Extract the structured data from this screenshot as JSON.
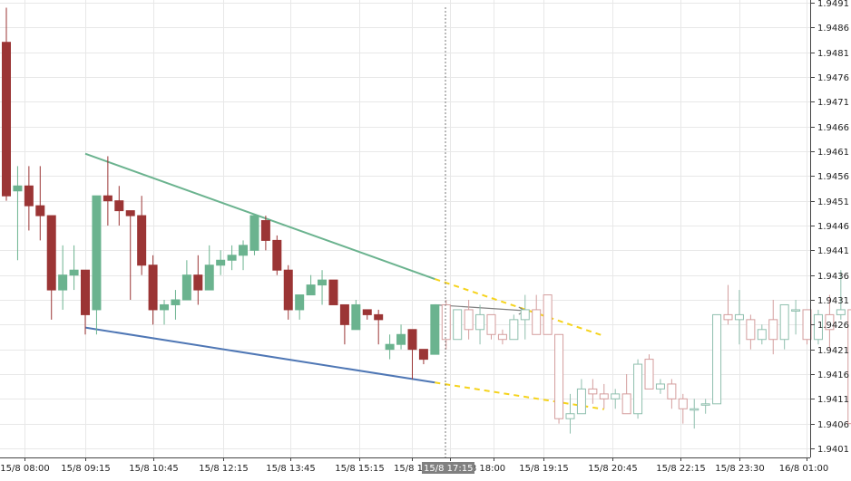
{
  "chart_data": {
    "type": "candlestick",
    "title": "",
    "xlabel": "",
    "ylabel": "",
    "ylim": [
      1.9399,
      1.9492
    ],
    "y_ticks": [
      "1.9401",
      "1.9406",
      "1.9411",
      "1.9416",
      "1.9421",
      "1.9426",
      "1.9431",
      "1.9436",
      "1.9441",
      "1.9446",
      "1.9451",
      "1.9456",
      "1.9461",
      "1.9466",
      "1.9471",
      "1.9476",
      "1.9481",
      "1.9486",
      "1.9491"
    ],
    "x_ticks": [
      "15/8 08:00",
      "15/8 09:15",
      "15/8 10:45",
      "15/8 12:15",
      "15/8 13:45",
      "15/8 15:15",
      "15/8 1",
      "15/8 17:15",
      "8 18:00",
      "15/8 19:15",
      "15/8 20:45",
      "15/8 22:15",
      "15/8 23:30",
      "16/8 01:00"
    ],
    "cursor_label": "15/8 17:15",
    "grid": true,
    "colors": {
      "bull": "#6bb38f",
      "bear": "#9b3535",
      "bull_projected": "#8fbfae",
      "bear_projected": "#d49d9d",
      "upper_trendline": "#6bb38f",
      "lower_trendline": "#4f77b5",
      "projection": "#f5d31c",
      "arrow": "#7f7f7f",
      "grid": "#e8e8e8"
    },
    "candles": [
      {
        "o": 1.9483,
        "h": 1.949,
        "l": 1.9451,
        "c": 1.9452
      },
      {
        "o": 1.9453,
        "h": 1.9458,
        "l": 1.9439,
        "c": 1.9454
      },
      {
        "o": 1.9454,
        "h": 1.9458,
        "l": 1.9445,
        "c": 1.945
      },
      {
        "o": 1.945,
        "h": 1.9458,
        "l": 1.9443,
        "c": 1.9448
      },
      {
        "o": 1.9448,
        "h": 1.9448,
        "l": 1.9427,
        "c": 1.9433
      },
      {
        "o": 1.9433,
        "h": 1.9442,
        "l": 1.9429,
        "c": 1.9436
      },
      {
        "o": 1.9436,
        "h": 1.9442,
        "l": 1.9433,
        "c": 1.9437
      },
      {
        "o": 1.9437,
        "h": 1.9437,
        "l": 1.9424,
        "c": 1.9428
      },
      {
        "o": 1.9429,
        "h": 1.9452,
        "l": 1.9424,
        "c": 1.9452
      },
      {
        "o": 1.9452,
        "h": 1.946,
        "l": 1.9446,
        "c": 1.9451
      },
      {
        "o": 1.9451,
        "h": 1.9454,
        "l": 1.9446,
        "c": 1.9449
      },
      {
        "o": 1.9449,
        "h": 1.9449,
        "l": 1.9431,
        "c": 1.9448
      },
      {
        "o": 1.9448,
        "h": 1.9452,
        "l": 1.9436,
        "c": 1.9438
      },
      {
        "o": 1.9438,
        "h": 1.944,
        "l": 1.9426,
        "c": 1.9429
      },
      {
        "o": 1.9429,
        "h": 1.9431,
        "l": 1.9426,
        "c": 1.943
      },
      {
        "o": 1.943,
        "h": 1.9433,
        "l": 1.9427,
        "c": 1.9431
      },
      {
        "o": 1.9431,
        "h": 1.9439,
        "l": 1.9431,
        "c": 1.9436
      },
      {
        "o": 1.9436,
        "h": 1.944,
        "l": 1.943,
        "c": 1.9433
      },
      {
        "o": 1.9433,
        "h": 1.9442,
        "l": 1.9433,
        "c": 1.9438
      },
      {
        "o": 1.9438,
        "h": 1.9441,
        "l": 1.9436,
        "c": 1.9439
      },
      {
        "o": 1.9439,
        "h": 1.9442,
        "l": 1.9437,
        "c": 1.944
      },
      {
        "o": 1.944,
        "h": 1.9443,
        "l": 1.9437,
        "c": 1.9442
      },
      {
        "o": 1.9441,
        "h": 1.9448,
        "l": 1.944,
        "c": 1.9448
      },
      {
        "o": 1.9447,
        "h": 1.9448,
        "l": 1.9441,
        "c": 1.9443
      },
      {
        "o": 1.9443,
        "h": 1.9444,
        "l": 1.9436,
        "c": 1.9437
      },
      {
        "o": 1.9437,
        "h": 1.9438,
        "l": 1.9427,
        "c": 1.9429
      },
      {
        "o": 1.9429,
        "h": 1.9432,
        "l": 1.9427,
        "c": 1.9432
      },
      {
        "o": 1.9432,
        "h": 1.9436,
        "l": 1.9432,
        "c": 1.9434
      },
      {
        "o": 1.9434,
        "h": 1.9437,
        "l": 1.943,
        "c": 1.9435
      },
      {
        "o": 1.9435,
        "h": 1.9435,
        "l": 1.943,
        "c": 1.943
      },
      {
        "o": 1.943,
        "h": 1.943,
        "l": 1.9422,
        "c": 1.9426
      },
      {
        "o": 1.9425,
        "h": 1.9431,
        "l": 1.9425,
        "c": 1.943
      },
      {
        "o": 1.9429,
        "h": 1.9429,
        "l": 1.9427,
        "c": 1.9428
      },
      {
        "o": 1.9428,
        "h": 1.9429,
        "l": 1.9422,
        "c": 1.9427
      },
      {
        "o": 1.9421,
        "h": 1.9424,
        "l": 1.9419,
        "c": 1.9422
      },
      {
        "o": 1.9422,
        "h": 1.9426,
        "l": 1.9421,
        "c": 1.9424
      },
      {
        "o": 1.9425,
        "h": 1.9425,
        "l": 1.9415,
        "c": 1.9421
      },
      {
        "o": 1.9421,
        "h": 1.9421,
        "l": 1.9418,
        "c": 1.9419
      },
      {
        "o": 1.942,
        "h": 1.943,
        "l": 1.942,
        "c": 1.943
      }
    ],
    "projected_candles": [
      {
        "o": 1.943,
        "h": 1.9431,
        "l": 1.9421,
        "c": 1.9423
      },
      {
        "o": 1.9423,
        "h": 1.9429,
        "l": 1.9423,
        "c": 1.9429
      },
      {
        "o": 1.9429,
        "h": 1.9431,
        "l": 1.9423,
        "c": 1.9425
      },
      {
        "o": 1.9425,
        "h": 1.943,
        "l": 1.9422,
        "c": 1.9428
      },
      {
        "o": 1.9428,
        "h": 1.9428,
        "l": 1.9423,
        "c": 1.9424
      },
      {
        "o": 1.9424,
        "h": 1.9425,
        "l": 1.9422,
        "c": 1.9423
      },
      {
        "o": 1.9423,
        "h": 1.9428,
        "l": 1.9423,
        "c": 1.9427
      },
      {
        "o": 1.9427,
        "h": 1.9432,
        "l": 1.9423,
        "c": 1.9429
      },
      {
        "o": 1.9429,
        "h": 1.9432,
        "l": 1.9424,
        "c": 1.9424
      },
      {
        "o": 1.9432,
        "h": 1.9432,
        "l": 1.9424,
        "c": 1.9424
      },
      {
        "o": 1.9424,
        "h": 1.9424,
        "l": 1.9406,
        "c": 1.9407
      },
      {
        "o": 1.9407,
        "h": 1.9412,
        "l": 1.9404,
        "c": 1.9408
      },
      {
        "o": 1.9408,
        "h": 1.9415,
        "l": 1.9408,
        "c": 1.9413
      },
      {
        "o": 1.9413,
        "h": 1.9415,
        "l": 1.941,
        "c": 1.9412
      },
      {
        "o": 1.9412,
        "h": 1.9414,
        "l": 1.9409,
        "c": 1.9411
      },
      {
        "o": 1.9411,
        "h": 1.9413,
        "l": 1.9409,
        "c": 1.9412
      },
      {
        "o": 1.9412,
        "h": 1.9416,
        "l": 1.9409,
        "c": 1.9408
      },
      {
        "o": 1.9408,
        "h": 1.9419,
        "l": 1.9407,
        "c": 1.9418
      },
      {
        "o": 1.9419,
        "h": 1.942,
        "l": 1.9413,
        "c": 1.9413
      },
      {
        "o": 1.9413,
        "h": 1.9415,
        "l": 1.9412,
        "c": 1.9414
      },
      {
        "o": 1.9414,
        "h": 1.9415,
        "l": 1.9409,
        "c": 1.9411
      },
      {
        "o": 1.9411,
        "h": 1.9412,
        "l": 1.9406,
        "c": 1.9409
      },
      {
        "o": 1.9409,
        "h": 1.9411,
        "l": 1.9405,
        "c": 1.9409
      },
      {
        "o": 1.941,
        "h": 1.9411,
        "l": 1.9408,
        "c": 1.941
      },
      {
        "o": 1.941,
        "h": 1.9428,
        "l": 1.941,
        "c": 1.9428
      },
      {
        "o": 1.9428,
        "h": 1.9434,
        "l": 1.9426,
        "c": 1.9427
      },
      {
        "o": 1.9427,
        "h": 1.9433,
        "l": 1.9422,
        "c": 1.9428
      },
      {
        "o": 1.9427,
        "h": 1.9428,
        "l": 1.9421,
        "c": 1.9423
      },
      {
        "o": 1.9423,
        "h": 1.9426,
        "l": 1.9422,
        "c": 1.9425
      },
      {
        "o": 1.9427,
        "h": 1.9431,
        "l": 1.942,
        "c": 1.9423
      },
      {
        "o": 1.9423,
        "h": 1.943,
        "l": 1.9421,
        "c": 1.943
      },
      {
        "o": 1.9429,
        "h": 1.9431,
        "l": 1.9424,
        "c": 1.9429
      },
      {
        "o": 1.9429,
        "h": 1.9429,
        "l": 1.9422,
        "c": 1.9423
      },
      {
        "o": 1.9423,
        "h": 1.9429,
        "l": 1.9422,
        "c": 1.9428
      },
      {
        "o": 1.9428,
        "h": 1.9432,
        "l": 1.9421,
        "c": 1.9425
      },
      {
        "o": 1.9428,
        "h": 1.9437,
        "l": 1.9427,
        "c": 1.9429
      },
      {
        "o": 1.9429,
        "h": 1.9429,
        "l": 1.9404,
        "c": 1.9406
      }
    ],
    "trendlines": {
      "upper": {
        "from": {
          "candle": 7,
          "price": 1.94605
        },
        "to": {
          "candle": 38,
          "price": 1.94352
        }
      },
      "lower": {
        "from": {
          "candle": 7,
          "price": 1.94254
        },
        "to": {
          "candle": 38,
          "price": 1.94143
        }
      },
      "upper_projection": {
        "from": {
          "candle": 38,
          "price": 1.94352
        },
        "to": {
          "candle": 53,
          "price": 1.94237
        }
      },
      "lower_projection": {
        "from": {
          "candle": 38,
          "price": 1.94143
        },
        "to": {
          "candle": 53,
          "price": 1.94089
        }
      },
      "arrow": {
        "from": {
          "candle": 38,
          "price": 1.943
        },
        "to": {
          "candle": 46,
          "price": 1.94288
        }
      }
    }
  }
}
